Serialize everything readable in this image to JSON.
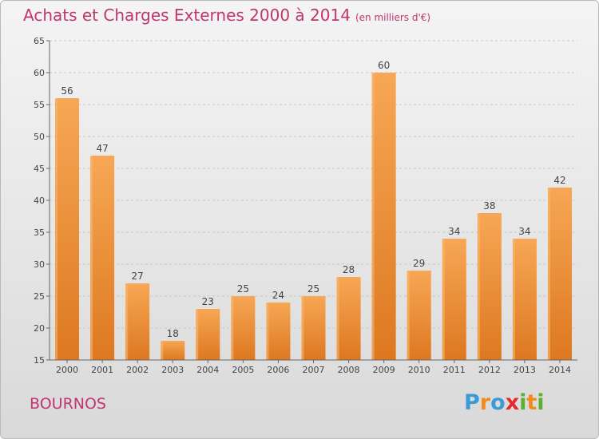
{
  "title": "Achats et Charges Externes 2000 à 2014",
  "unit": "(en milliers d'€)",
  "place": "BOURNOS",
  "logo": {
    "letters": [
      "P",
      "r",
      "o",
      "x",
      "i",
      "t",
      "i"
    ],
    "colors": [
      "#3a9bd5",
      "#f18a1f",
      "#3a9bd5",
      "#e32b2b",
      "#59b132",
      "#f18a1f",
      "#59b132"
    ]
  },
  "colors": {
    "bar": "#f08a2c",
    "bar_light": "#f7aa58",
    "title": "#c0366e"
  },
  "chart_data": {
    "type": "bar",
    "categories": [
      "2000",
      "2001",
      "2002",
      "2003",
      "2004",
      "2005",
      "2006",
      "2007",
      "2008",
      "2009",
      "2010",
      "2011",
      "2012",
      "2013",
      "2014"
    ],
    "values": [
      56,
      47,
      27,
      18,
      23,
      25,
      24,
      25,
      28,
      60,
      29,
      34,
      38,
      34,
      42
    ],
    "ylim": [
      15,
      65
    ],
    "yticks": [
      15,
      20,
      25,
      30,
      35,
      40,
      45,
      50,
      55,
      60,
      65
    ],
    "grid": true
  }
}
